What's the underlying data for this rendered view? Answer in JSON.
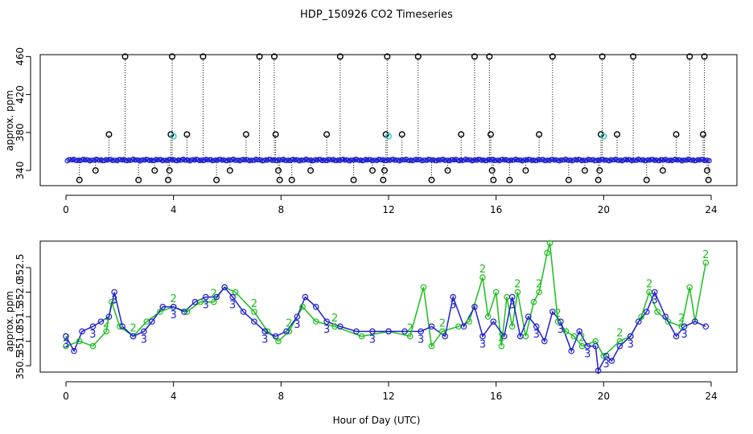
{
  "chart_data": [
    {
      "type": "scatter",
      "title": "HDP_150926  CO2 Timeseries",
      "xlabel": "",
      "ylabel": "approx. ppm",
      "xlim": [
        0,
        24
      ],
      "ylim": [
        324,
        462
      ],
      "xticks": [
        0,
        4,
        8,
        12,
        16,
        20,
        24
      ],
      "xtick_labels": [
        "0",
        "4",
        "8",
        "12",
        "16",
        "20",
        "24"
      ],
      "yticks": [
        340,
        380,
        420,
        460
      ],
      "ytick_labels": [
        "340",
        "380",
        "420",
        "460"
      ],
      "baseline": 351,
      "colors": {
        "baseline": "#1f1fd0",
        "outlier": "#000000",
        "cyan": "#22c8c8"
      },
      "outliers_black": [
        [
          0.5,
          330
        ],
        [
          1.1,
          340
        ],
        [
          1.6,
          378
        ],
        [
          2.2,
          460
        ],
        [
          2.7,
          330
        ],
        [
          3.3,
          340
        ],
        [
          3.8,
          330
        ],
        [
          3.85,
          340
        ],
        [
          3.9,
          378
        ],
        [
          3.95,
          460
        ],
        [
          4.5,
          378
        ],
        [
          5.1,
          460
        ],
        [
          5.6,
          330
        ],
        [
          6.1,
          340
        ],
        [
          6.7,
          378
        ],
        [
          7.2,
          460
        ],
        [
          7.8,
          378
        ],
        [
          7.75,
          460
        ],
        [
          7.9,
          340
        ],
        [
          7.95,
          330
        ],
        [
          8.4,
          330
        ],
        [
          9.1,
          340
        ],
        [
          9.7,
          378
        ],
        [
          10.2,
          460
        ],
        [
          10.7,
          330
        ],
        [
          11.4,
          340
        ],
        [
          11.8,
          330
        ],
        [
          11.85,
          340
        ],
        [
          11.9,
          378
        ],
        [
          11.95,
          460
        ],
        [
          12.5,
          378
        ],
        [
          13.1,
          460
        ],
        [
          13.6,
          330
        ],
        [
          14.2,
          340
        ],
        [
          14.7,
          378
        ],
        [
          15.2,
          460
        ],
        [
          15.8,
          378
        ],
        [
          15.75,
          460
        ],
        [
          15.85,
          340
        ],
        [
          15.9,
          330
        ],
        [
          16.5,
          330
        ],
        [
          17.1,
          340
        ],
        [
          17.6,
          378
        ],
        [
          18.1,
          460
        ],
        [
          18.7,
          330
        ],
        [
          19.3,
          340
        ],
        [
          19.8,
          330
        ],
        [
          19.85,
          340
        ],
        [
          19.9,
          378
        ],
        [
          19.95,
          460
        ],
        [
          20.5,
          378
        ],
        [
          21.1,
          460
        ],
        [
          21.6,
          330
        ],
        [
          22.2,
          340
        ],
        [
          22.7,
          378
        ],
        [
          23.2,
          460
        ],
        [
          23.7,
          378
        ],
        [
          23.75,
          460
        ],
        [
          23.85,
          340
        ],
        [
          23.9,
          330
        ]
      ],
      "outliers_cyan": [
        [
          4.0,
          376
        ],
        [
          12.0,
          376
        ],
        [
          20.0,
          376
        ]
      ]
    },
    {
      "type": "line",
      "title": "",
      "xlabel": "Hour of Day (UTC)",
      "ylabel": "approx. ppm",
      "xlim": [
        0,
        24
      ],
      "ylim": [
        350.37,
        353.04
      ],
      "xticks": [
        0,
        4,
        8,
        12,
        16,
        20,
        24
      ],
      "xtick_labels": [
        "0",
        "4",
        "8",
        "12",
        "16",
        "20",
        "24"
      ],
      "yticks": [
        350.5,
        351.0,
        351.5,
        352.0,
        352.5
      ],
      "ytick_labels": [
        "350.5",
        "351.0",
        "351.5",
        "352.0",
        "352.5"
      ],
      "series": [
        {
          "name": "2",
          "color": "#1bbf1b",
          "marker": "2",
          "x": [
            0,
            0.5,
            1,
            1.5,
            1.7,
            2,
            2.5,
            3,
            3.5,
            4,
            4.5,
            5,
            5.5,
            5.9,
            6.3,
            7,
            7.5,
            7.9,
            8.3,
            8.8,
            9.3,
            10,
            11,
            12,
            12.8,
            13.3,
            13.6,
            14,
            14.6,
            15,
            15.5,
            15.7,
            16,
            16.2,
            16.4,
            16.6,
            16.8,
            17.1,
            17.4,
            17.6,
            17.9,
            18,
            18.3,
            18.6,
            18.9,
            19.2,
            19.7,
            20,
            20.6,
            21,
            21.4,
            21.7,
            22,
            22.4,
            22.9,
            23.2,
            23.4,
            23.8
          ],
          "values": [
            350.9,
            351.0,
            350.9,
            351.2,
            351.8,
            351.3,
            351.1,
            351.4,
            351.6,
            351.7,
            351.6,
            351.8,
            351.8,
            352.1,
            352.0,
            351.6,
            351.2,
            351.0,
            351.2,
            351.7,
            351.4,
            351.3,
            351.1,
            351.2,
            351.1,
            352.1,
            350.9,
            351.2,
            351.3,
            351.4,
            352.3,
            351.5,
            352.0,
            350.9,
            351.9,
            351.3,
            352.0,
            351.1,
            351.8,
            352.0,
            352.8,
            353.0,
            351.4,
            351.2,
            351.1,
            350.9,
            351.0,
            350.7,
            351.0,
            351.1,
            351.5,
            352.0,
            351.6,
            351.4,
            351.3,
            352.1,
            351.4,
            352.6
          ]
        },
        {
          "name": "3",
          "color": "#1f1fd0",
          "marker": "3",
          "x": [
            0,
            0.3,
            0.6,
            1,
            1.3,
            1.6,
            1.8,
            2.1,
            2.5,
            2.9,
            3.2,
            3.6,
            4,
            4.4,
            4.8,
            5.2,
            5.6,
            5.9,
            6.2,
            6.6,
            7,
            7.4,
            7.8,
            8.2,
            8.6,
            8.9,
            9.3,
            9.7,
            10.2,
            10.8,
            11.4,
            12,
            12.6,
            13.2,
            13.6,
            14.1,
            14.4,
            14.8,
            15.2,
            15.5,
            15.9,
            16.3,
            16.6,
            16.9,
            17.2,
            17.5,
            17.8,
            18.1,
            18.4,
            18.8,
            19.1,
            19.4,
            19.7,
            19.8,
            20.1,
            20.3,
            20.6,
            21,
            21.3,
            21.6,
            21.9,
            22.3,
            22.7,
            23,
            23.4,
            23.8
          ],
          "values": [
            351.1,
            350.8,
            351.2,
            351.3,
            351.4,
            351.5,
            352.0,
            351.3,
            351.1,
            351.2,
            351.4,
            351.7,
            351.7,
            351.6,
            351.8,
            351.9,
            351.9,
            352.1,
            351.9,
            351.6,
            351.4,
            351.2,
            351.1,
            351.2,
            351.5,
            351.9,
            351.7,
            351.4,
            351.3,
            351.2,
            351.2,
            351.2,
            351.2,
            351.2,
            351.3,
            351.1,
            351.9,
            351.3,
            351.7,
            351.1,
            351.4,
            351.1,
            351.9,
            351.1,
            351.5,
            351.3,
            351.0,
            351.6,
            351.4,
            350.8,
            351.2,
            350.9,
            350.9,
            350.4,
            350.7,
            350.6,
            350.9,
            351.1,
            351.4,
            351.6,
            352.0,
            351.5,
            351.1,
            351.3,
            351.4,
            351.3
          ]
        }
      ]
    }
  ]
}
